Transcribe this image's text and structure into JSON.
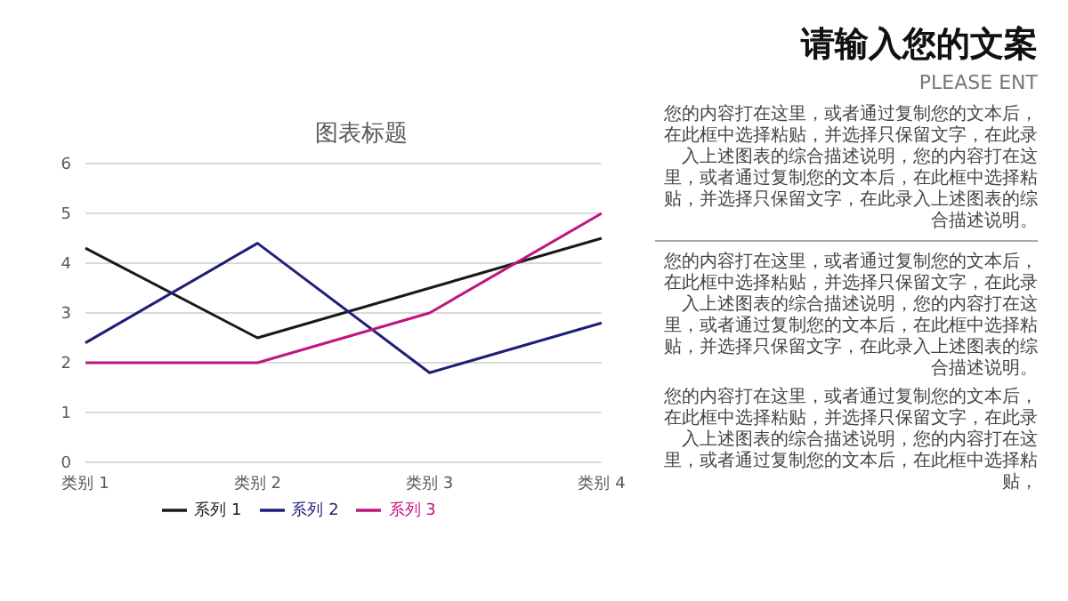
{
  "chart_data": [
    {
      "type": "line",
      "title": "图表标题",
      "categories": [
        "类别 1",
        "类别 2",
        "类别 3",
        "类别 4"
      ],
      "series": [
        {
          "name": "系列 1",
          "color": "#1a1a1a",
          "values": [
            4.3,
            2.5,
            3.5,
            4.5
          ]
        },
        {
          "name": "系列 2",
          "color": "#1f1f7a",
          "values": [
            2.4,
            4.4,
            1.8,
            2.8
          ]
        },
        {
          "name": "系列 3",
          "color": "#c0157f",
          "values": [
            2,
            2,
            3,
            5
          ]
        }
      ],
      "ylim": [
        0,
        6
      ],
      "yticks": [
        0,
        1,
        2,
        3,
        4,
        5,
        6
      ],
      "grid": "y",
      "legend": "bottom",
      "marker": "none",
      "line_style": "solid"
    },
    {
      "type": "other",
      "title": "请输入您的文案",
      "subtitle": "PLEASE ENT",
      "annotations": [
        "您的内容打在这里，或者通过复制您的文本后，在此框中选择粘贴，并选择只保留文字，在此录入上述图表的综合描述说明，您的内容打在这里，或者通过复制您的文本后，在此框中选择粘贴，并选择只保留文字，在此录入上述图表的综合描述说明。",
        "您的内容打在这里，或者通过复制您的文本后，在此框中选择粘贴，并选择只保留文字，在此录入上述图表的综合描述说明，您的内容打在这里，或者通过复制您的文本后，在此框中选择粘贴，并选择只保留文字，在此录入上述图表的综合描述说明。",
        "您的内容打在这里，或者通过复制您的文本后，在此框中选择粘贴，并选择只保留文字，在此录入上述图表的综合描述说明，您的内容打在这里，或者通过复制您的文本后，在此框中选择粘贴，"
      ]
    }
  ]
}
